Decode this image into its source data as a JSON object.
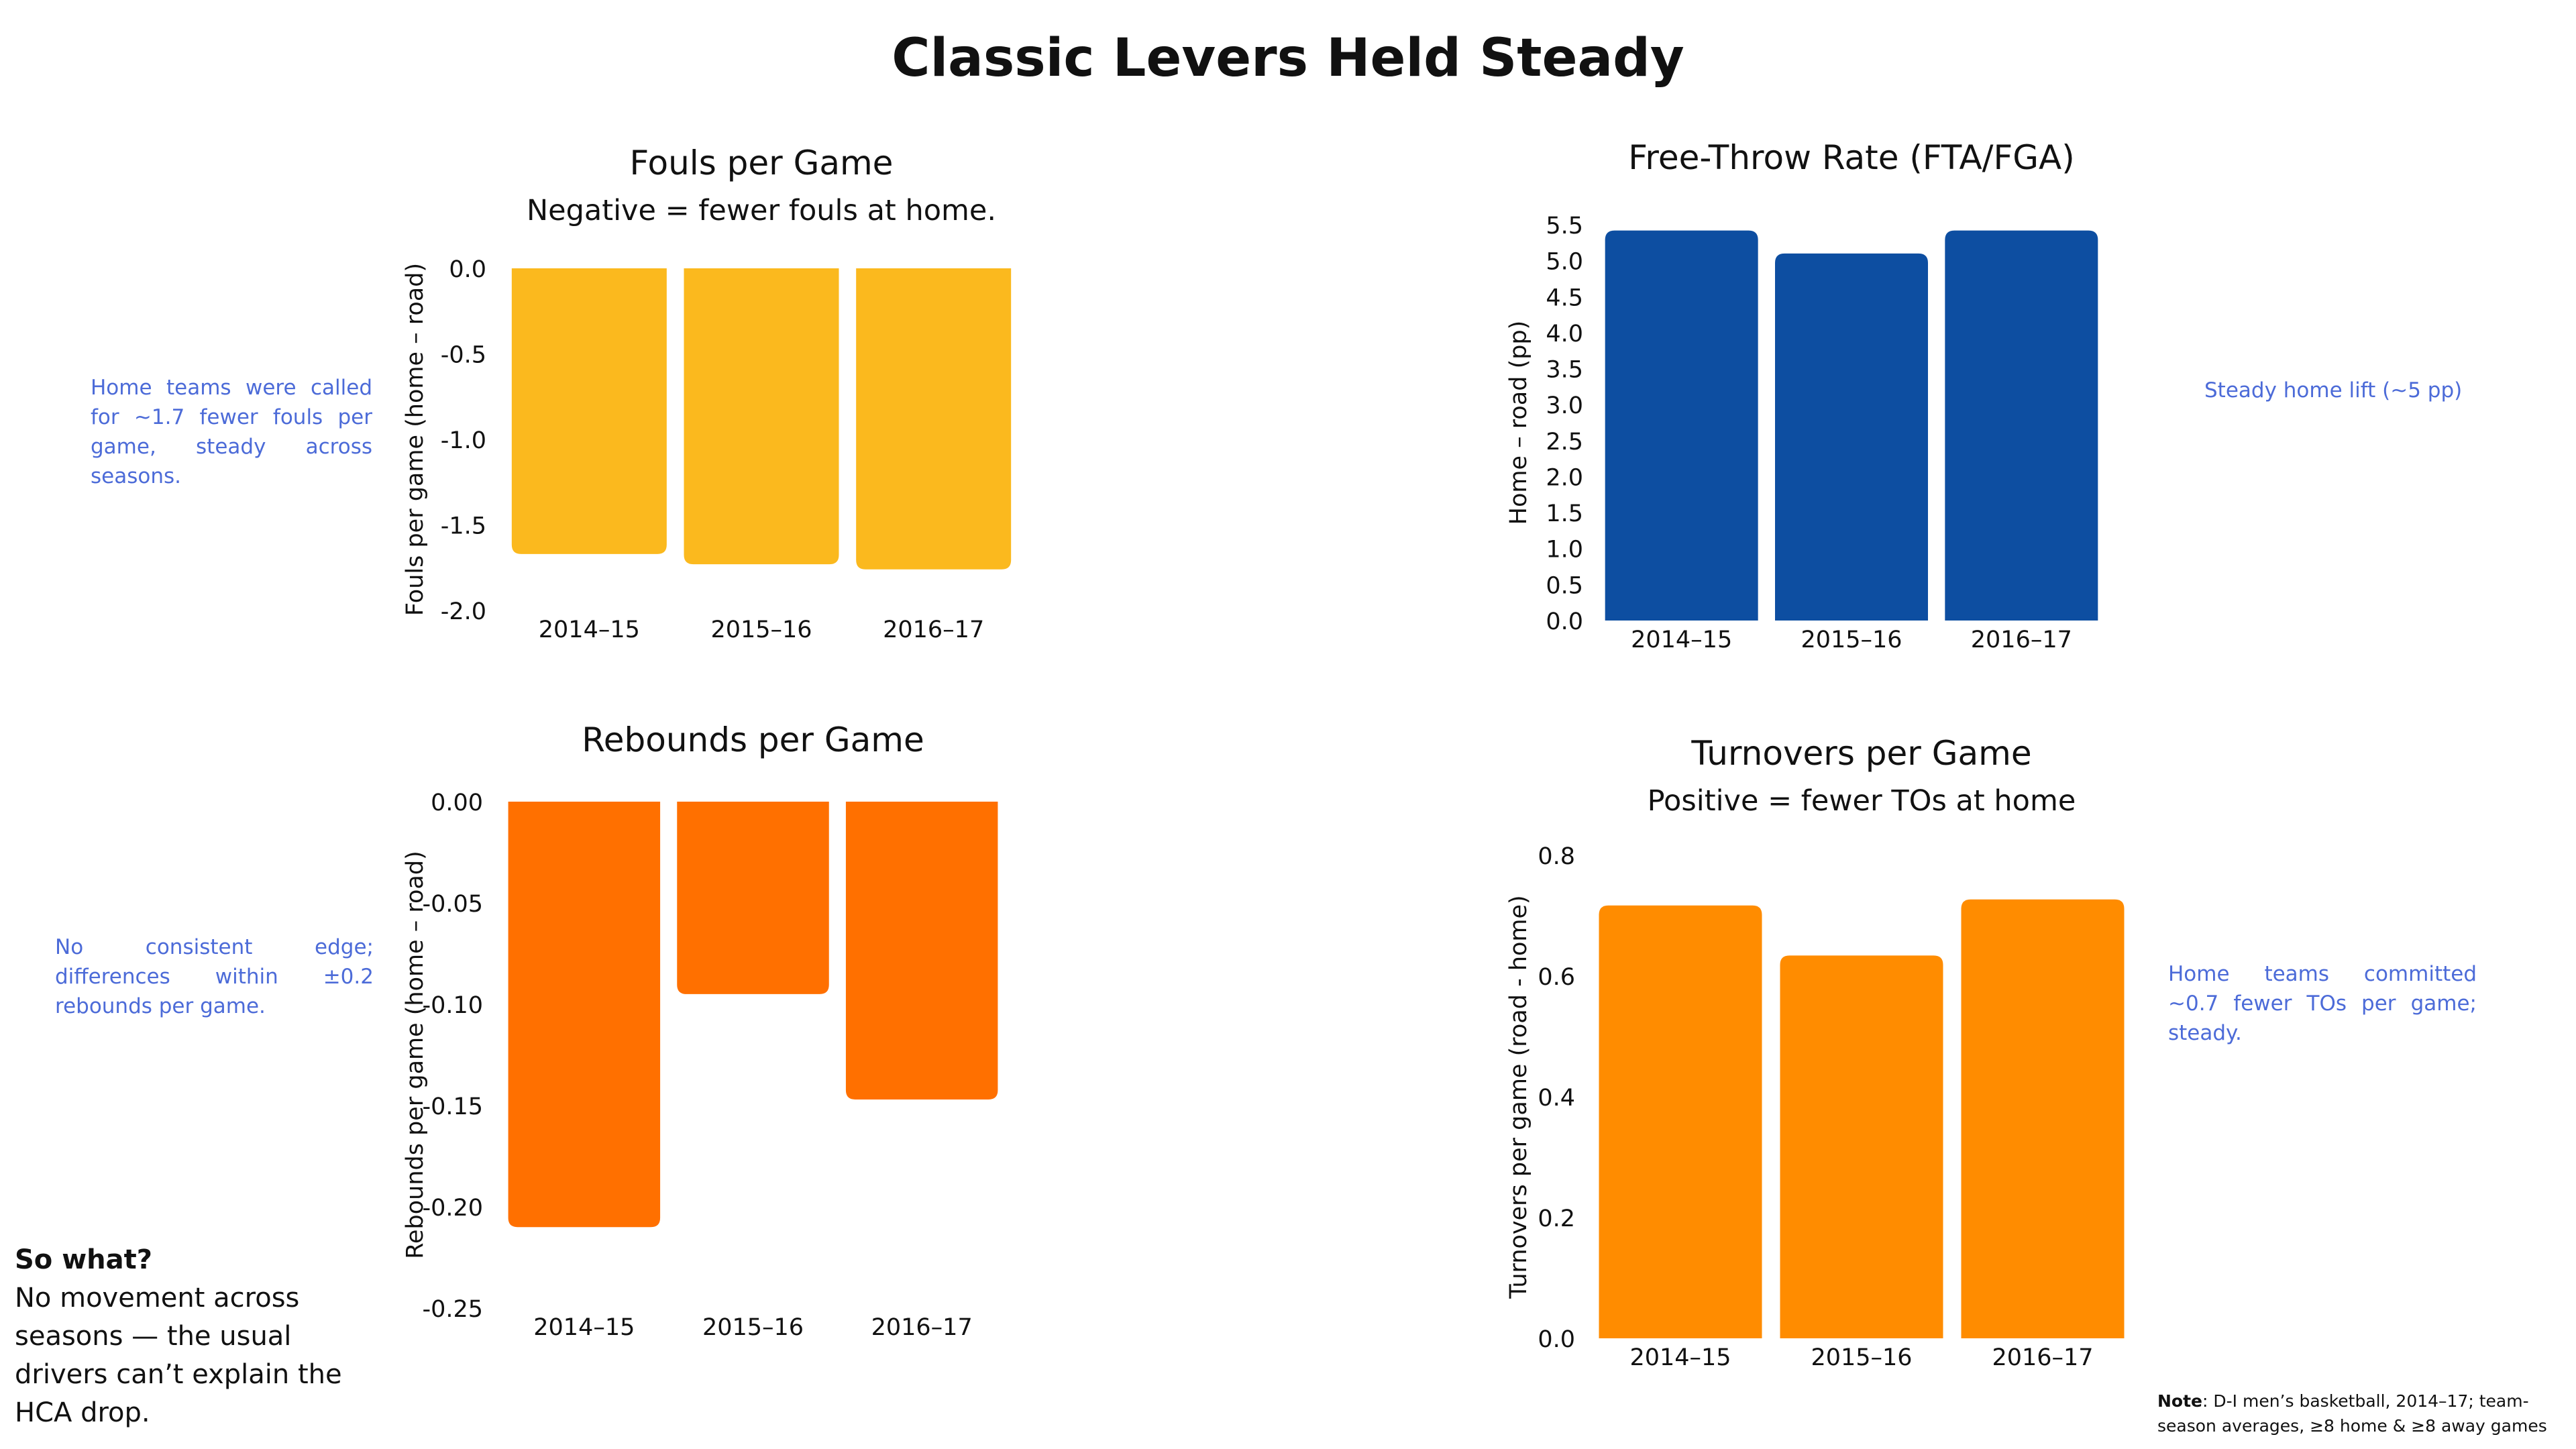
{
  "title": "Classic Levers Held Steady",
  "chart_data": [
    {
      "id": "fouls",
      "type": "bar",
      "title": "Fouls per Game",
      "subtitle": "Negative = fewer fouls at home.",
      "ylabel": "Fouls per game (home – road)",
      "xlabel": "",
      "categories": [
        "2014–15",
        "2015–16",
        "2016–17"
      ],
      "values": [
        -1.67,
        -1.73,
        -1.76
      ],
      "ylim": [
        -2.0,
        0.0
      ],
      "yticks": [
        0.0,
        -0.5,
        -1.0,
        -1.5,
        -2.0
      ],
      "ytick_labels": [
        "0.0",
        "-0.5",
        "-1.0",
        "-1.5",
        "-2.0"
      ],
      "color": "#fbb91e",
      "grid": false,
      "annotation": "Home teams were called for ~1.7 fewer fouls per game, steady across seasons."
    },
    {
      "id": "ftr",
      "type": "bar",
      "title": "Free-Throw Rate (FTA/FGA)",
      "subtitle": "",
      "ylabel": "Home – road (pp)",
      "xlabel": "",
      "categories": [
        "2014–15",
        "2015–16",
        "2016–17"
      ],
      "values": [
        5.42,
        5.1,
        5.42
      ],
      "ylim": [
        0.0,
        5.5
      ],
      "yticks": [
        0.0,
        0.5,
        1.0,
        1.5,
        2.0,
        2.5,
        3.0,
        3.5,
        4.0,
        4.5,
        5.0,
        5.5
      ],
      "ytick_labels": [
        "0.0",
        "0.5",
        "1.0",
        "1.5",
        "2.0",
        "2.5",
        "3.0",
        "3.5",
        "4.0",
        "4.5",
        "5.0",
        "5.5"
      ],
      "color": "#0d4ea1",
      "grid": false,
      "annotation": "Steady home lift (~5 pp)"
    },
    {
      "id": "rebounds",
      "type": "bar",
      "title": "Rebounds per Game",
      "subtitle": "",
      "ylabel": "Rebounds per game (home – road)",
      "xlabel": "",
      "categories": [
        "2014–15",
        "2015–16",
        "2016–17"
      ],
      "values": [
        -0.21,
        -0.095,
        -0.147
      ],
      "ylim": [
        -0.25,
        0.0
      ],
      "yticks": [
        0.0,
        -0.05,
        -0.1,
        -0.15,
        -0.2,
        -0.25
      ],
      "ytick_labels": [
        "0.00",
        "-0.05",
        "-0.10",
        "-0.15",
        "-0.20",
        "-0.25"
      ],
      "color": "#ff7000",
      "grid": false,
      "annotation": "No consistent edge; differences within ±0.2 rebounds per game."
    },
    {
      "id": "turnovers",
      "type": "bar",
      "title": "Turnovers per Game",
      "subtitle": "Positive = fewer TOs at home",
      "ylabel": "Turnovers per game (road - home)",
      "xlabel": "",
      "categories": [
        "2014–15",
        "2015–16",
        "2016–17"
      ],
      "values": [
        0.717,
        0.634,
        0.727
      ],
      "ylim": [
        0.0,
        0.8
      ],
      "yticks": [
        0.0,
        0.2,
        0.4,
        0.6,
        0.8
      ],
      "ytick_labels": [
        "0.0",
        "0.2",
        "0.4",
        "0.6",
        "0.8"
      ],
      "color": "#ff8c00",
      "grid": false,
      "annotation": "Home teams committed ~0.7 fewer TOs per game; steady."
    }
  ],
  "takeaway": {
    "heading": "So what?",
    "body": "No movement across seasons — the usual drivers can’t explain the HCA drop."
  },
  "footnote": {
    "label": "Note",
    "text": ": D-I men’s basketball, 2014–17; team-season averages, ≥8 home & ≥8 away games"
  }
}
